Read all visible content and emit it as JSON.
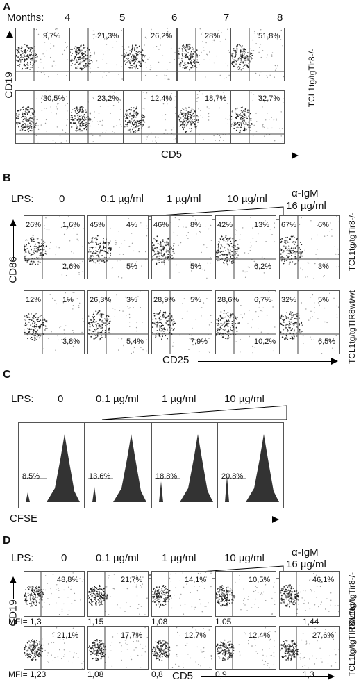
{
  "panelA": {
    "letter": "A",
    "months_label": "Months:",
    "months": [
      "4",
      "5",
      "6",
      "7",
      "8"
    ],
    "top_pcts": [
      "9,7%",
      "21,3%",
      "26,2%",
      "28%",
      "51,8%"
    ],
    "bottom_pcts": [
      "30,5%",
      "23,2%",
      "12,4%",
      "18,7%",
      "32,7%"
    ],
    "ylabel": "CD19",
    "xlabel": "CD5",
    "row_label_top": "TCL1tg/tgTir8-/-"
  },
  "panelB": {
    "letter": "B",
    "lps_label": "LPS:",
    "conditions": [
      "0",
      "0.1 µg/ml",
      "1 µg/ml",
      "10 µg/ml"
    ],
    "aigm_line1": "α-IgM",
    "aigm_line2": "16 µg/ml",
    "row1": [
      {
        "tl": "26%",
        "tr": "1,6%",
        "br": "2,6%"
      },
      {
        "tl": "45%",
        "tr": "4%",
        "br": "5%"
      },
      {
        "tl": "46%",
        "tr": "8%",
        "br": "5%"
      },
      {
        "tl": "42%",
        "tr": "13%",
        "br": "6,2%"
      },
      {
        "tl": "67%",
        "tr": "6%",
        "br": "3%"
      }
    ],
    "row2": [
      {
        "tl": "12%",
        "tr": "1%",
        "br": "3,8%"
      },
      {
        "tl": "26,3%",
        "tr": "3%",
        "br": "5,4%"
      },
      {
        "tl": "28,9%",
        "tr": "5%",
        "br": "7,9%"
      },
      {
        "tl": "28,6%",
        "tr": "6,7%",
        "br": "10,2%"
      },
      {
        "tl": "32%",
        "tr": "5%",
        "br": "6,5%"
      }
    ],
    "ylabel": "CD86",
    "xlabel": "CD25",
    "row_label_1": "TCL1tg/tgTir8-/-",
    "row_label_2": "TCL1tg/tgTIR8wt/wt"
  },
  "panelC": {
    "letter": "C",
    "lps_label": "LPS:",
    "conditions": [
      "0",
      "0.1 µg/ml",
      "1 µg/ml",
      "10 µg/ml"
    ],
    "gate_pcts": [
      "8.5%",
      "13.6%",
      "18.8%",
      "20.8%"
    ],
    "xlabel": "CFSE"
  },
  "panelD": {
    "letter": "D",
    "lps_label": "LPS:",
    "conditions": [
      "0",
      "0.1 µg/ml",
      "1 µg/ml",
      "10 µg/ml"
    ],
    "aigm_line1": "α-IgM",
    "aigm_line2": "16 µg/ml",
    "row1_pcts": [
      "48,8%",
      "21,7%",
      "14,1%",
      "10,5%",
      "46,1%"
    ],
    "row1_mfi": [
      "MFI= 1,3",
      "1,15",
      "1,08",
      "1,05",
      "1,44"
    ],
    "row2_pcts": [
      "21,1%",
      "17,7%",
      "12,7%",
      "12,4%",
      "27,6%"
    ],
    "row2_mfi": [
      "MFI= 1,23",
      "1,08",
      "0,8",
      "0,9",
      "1,3"
    ],
    "ylabel": "CD19",
    "xlabel": "CD5",
    "row_label_1": "TCL1tg/tgTir8-/-",
    "row_label_2": "TCL1tg/tgTIR8wt/wt"
  }
}
